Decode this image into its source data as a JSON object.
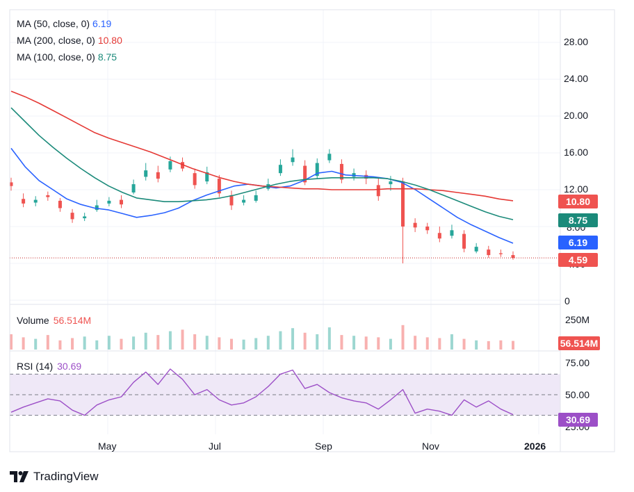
{
  "colors": {
    "ma50": "#2962ff",
    "ma200": "#e53935",
    "ma100": "#1b8a7a",
    "up": "#26a69a",
    "down": "#ef5350",
    "rsi": "#9c4fc7",
    "rsi_fill": "#efe8f7",
    "vol_badge": "#ef5350",
    "grid": "#f0f3fa",
    "price_line": "#c62828"
  },
  "legend": {
    "ma50": {
      "label": "MA (50, close, 0)",
      "value": "6.19"
    },
    "ma200": {
      "label": "MA (200, close, 0)",
      "value": "10.80"
    },
    "ma100": {
      "label": "MA (100, close, 0)",
      "value": "8.75"
    }
  },
  "badges": {
    "ma200": "10.80",
    "ma100": "8.75",
    "ma50": "6.19",
    "last_price": "4.59",
    "volume": "56.514M",
    "rsi": "30.69"
  },
  "price_axis": [
    "28.00",
    "24.00",
    "20.00",
    "16.00",
    "12.00",
    "8.00",
    "4.00",
    "0"
  ],
  "volume_panel": {
    "label": "Volume",
    "value": "56.514M",
    "axis": [
      "250M"
    ]
  },
  "rsi_panel": {
    "label": "RSI (14)",
    "value": "30.69",
    "axis": [
      "75.00",
      "50.00",
      "25.00"
    ]
  },
  "time_axis": [
    "May",
    "Jul",
    "Sep",
    "Nov",
    "2026"
  ],
  "brand": "TradingView",
  "chart_data": {
    "type": "candlestick",
    "x_ticks": [
      "May",
      "Jul",
      "Sep",
      "Nov",
      "2026"
    ],
    "price": {
      "ylim": [
        0,
        30
      ],
      "last_price": 4.59,
      "series": [
        {
          "name": "MA (50, close, 0)",
          "values": [
            16.5,
            14.5,
            13.0,
            12.0,
            11.0,
            10.4,
            10.0,
            9.8,
            9.4,
            9.0,
            9.2,
            9.5,
            10.0,
            10.8,
            11.4,
            11.9,
            12.4,
            12.6,
            12.4,
            12.2,
            12.4,
            13.0,
            13.8,
            14.0,
            13.6,
            13.5,
            13.4,
            13.2,
            12.8,
            12.0,
            11.0,
            10.0,
            9.0,
            8.2,
            7.5,
            6.8,
            6.19
          ]
        },
        {
          "name": "MA (200, close, 0)",
          "values": [
            22.7,
            22.1,
            21.4,
            20.6,
            19.8,
            19.0,
            18.2,
            17.6,
            17.1,
            16.6,
            16.1,
            15.5,
            14.9,
            14.3,
            13.8,
            13.3,
            12.9,
            12.6,
            12.4,
            12.3,
            12.2,
            12.1,
            12.1,
            12.0,
            12.0,
            12.0,
            12.0,
            12.1,
            12.1,
            12.1,
            12.0,
            11.9,
            11.7,
            11.5,
            11.3,
            11.0,
            10.8
          ]
        },
        {
          "name": "MA (100, close, 0)",
          "values": [
            20.9,
            19.4,
            17.9,
            16.6,
            15.4,
            14.3,
            13.3,
            12.4,
            11.7,
            11.1,
            10.9,
            10.7,
            10.7,
            10.8,
            10.9,
            11.1,
            11.4,
            11.8,
            12.2,
            12.6,
            12.9,
            13.1,
            13.2,
            13.3,
            13.3,
            13.3,
            13.3,
            13.2,
            12.9,
            12.5,
            12.0,
            11.4,
            10.8,
            10.2,
            9.6,
            9.1,
            8.75
          ]
        }
      ],
      "closes": [
        12.4,
        10.5,
        10.9,
        11.2,
        10.0,
        8.8,
        9.1,
        10.3,
        10.8,
        10.4,
        12.6,
        14.1,
        13.2,
        15.1,
        14.3,
        12.5,
        13.9,
        11.6,
        10.3,
        10.9,
        11.4,
        12.6,
        14.7,
        15.5,
        12.8,
        14.9,
        15.9,
        13.1,
        13.8,
        13.2,
        11.3,
        12.9,
        8.0,
        7.9,
        7.6,
        6.7,
        7.6,
        5.6,
        5.8,
        4.9,
        5.0,
        4.59
      ],
      "opens": [
        12.8,
        11.0,
        10.6,
        11.4,
        10.8,
        9.5,
        8.9,
        9.8,
        10.5,
        10.9,
        11.7,
        13.4,
        13.9,
        14.2,
        15.0,
        13.8,
        12.9,
        13.2,
        11.4,
        10.6,
        10.8,
        12.1,
        13.8,
        15.0,
        14.6,
        13.5,
        15.2,
        14.8,
        13.4,
        13.6,
        12.5,
        12.6,
        12.9,
        8.4,
        8.0,
        7.3,
        7.0,
        7.2,
        5.3,
        5.5,
        5.1,
        4.9
      ],
      "highs": [
        13.3,
        11.6,
        11.3,
        11.8,
        11.1,
        9.9,
        9.5,
        10.9,
        11.2,
        11.4,
        13.1,
        14.9,
        14.6,
        15.6,
        15.5,
        14.3,
        14.5,
        13.6,
        11.9,
        11.4,
        11.9,
        13.2,
        15.3,
        16.4,
        15.2,
        15.4,
        16.4,
        15.3,
        14.3,
        14.1,
        13.3,
        13.5,
        13.3,
        8.9,
        8.4,
        8.0,
        8.2,
        7.6,
        6.2,
        5.9,
        5.5,
        5.3
      ],
      "lows": [
        11.9,
        10.1,
        10.2,
        10.8,
        9.6,
        8.4,
        8.6,
        9.6,
        10.2,
        10.0,
        11.5,
        13.0,
        12.8,
        13.9,
        14.0,
        12.1,
        12.6,
        11.2,
        9.8,
        10.3,
        10.6,
        11.9,
        13.5,
        14.6,
        12.5,
        13.2,
        14.9,
        12.7,
        13.0,
        12.6,
        10.8,
        11.9,
        4.0,
        7.4,
        7.2,
        6.3,
        6.7,
        5.2,
        5.1,
        4.6,
        4.7,
        4.4
      ]
    },
    "volume": {
      "unit": "M",
      "ylim": [
        0,
        250
      ],
      "last": 56.514,
      "values": [
        100,
        80,
        70,
        95,
        60,
        75,
        85,
        60,
        90,
        70,
        85,
        110,
        95,
        120,
        130,
        100,
        90,
        80,
        70,
        65,
        75,
        90,
        120,
        140,
        110,
        100,
        145,
        95,
        90,
        85,
        80,
        70,
        160,
        90,
        80,
        75,
        100,
        70,
        60,
        55,
        60,
        56.514
      ]
    },
    "rsi": {
      "ylim": [
        20,
        80
      ],
      "levels": [
        70,
        50,
        30
      ],
      "last": 30.69,
      "values": [
        33,
        38,
        42,
        46,
        44,
        35,
        30,
        40,
        45,
        48,
        62,
        72,
        60,
        75,
        65,
        50,
        55,
        45,
        40,
        42,
        48,
        58,
        70,
        74,
        56,
        60,
        52,
        47,
        44,
        42,
        36,
        45,
        55,
        32,
        36,
        34,
        30,
        45,
        38,
        44,
        36,
        30.69
      ]
    }
  }
}
